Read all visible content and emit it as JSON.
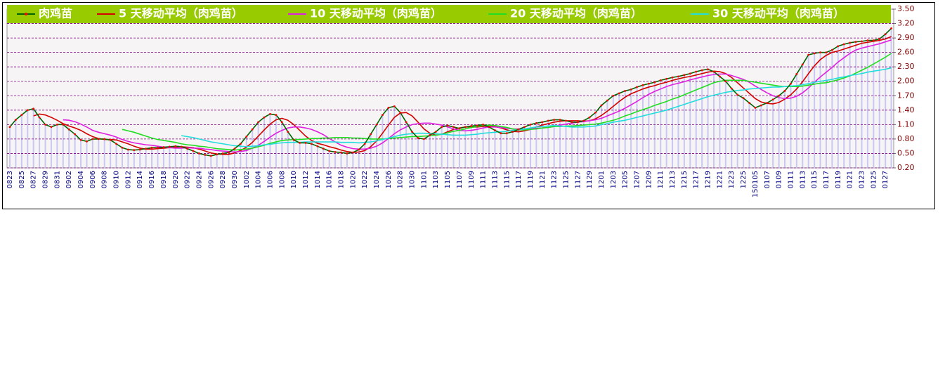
{
  "chart_data": {
    "type": "line",
    "categories": [
      "0823",
      null,
      "0825",
      null,
      "0827",
      null,
      "0829",
      null,
      "0831",
      null,
      "0902",
      null,
      "0904",
      null,
      "0906",
      null,
      "0908",
      null,
      "0910",
      null,
      "0912",
      null,
      "0914",
      null,
      "0916",
      null,
      "0918",
      null,
      "0920",
      null,
      "0922",
      null,
      "0924",
      null,
      "0926",
      null,
      "0928",
      null,
      "0930",
      null,
      "1002",
      null,
      "1004",
      null,
      "1006",
      null,
      "1008",
      null,
      "1010",
      null,
      "1012",
      null,
      "1014",
      null,
      "1016",
      null,
      "1018",
      null,
      "1020",
      null,
      "1022",
      null,
      "1024",
      null,
      "1026",
      null,
      "1028",
      null,
      "1030",
      null,
      "1101",
      null,
      "1103",
      null,
      "1105",
      null,
      "1107",
      null,
      "1109",
      null,
      "1111",
      null,
      "1113",
      null,
      "1115",
      null,
      "1117",
      null,
      "1119",
      null,
      "1121",
      null,
      "1123",
      null,
      "1125",
      null,
      "1127",
      null,
      "1129",
      null,
      "1201",
      null,
      "1203",
      null,
      "1205",
      null,
      "1207",
      null,
      "1209",
      null,
      "1211",
      null,
      "1213",
      null,
      "1215",
      null,
      "1217",
      null,
      "1219",
      null,
      "1221",
      null,
      "1223",
      null,
      "1225",
      null,
      "150105",
      null,
      "0107",
      null,
      "0109",
      null,
      "0111",
      null,
      "0113",
      null,
      "0115",
      null,
      "0117",
      null,
      "0119",
      null,
      "0121",
      null,
      "0123",
      null,
      "0125",
      null,
      "0127",
      null
    ],
    "series": [
      {
        "name": "肉鸡苗",
        "color": "#006400",
        "marker_color": "#ff0000",
        "values": [
          1.05,
          1.2,
          1.3,
          1.4,
          1.43,
          1.25,
          1.1,
          1.05,
          1.1,
          1.1,
          1.0,
          0.9,
          0.78,
          0.75,
          0.8,
          0.8,
          0.8,
          0.78,
          0.7,
          0.62,
          0.58,
          0.57,
          0.58,
          0.6,
          0.62,
          0.62,
          0.63,
          0.64,
          0.65,
          0.64,
          0.6,
          0.55,
          0.5,
          0.47,
          0.45,
          0.48,
          0.5,
          0.52,
          0.6,
          0.7,
          0.85,
          1.0,
          1.15,
          1.25,
          1.32,
          1.3,
          1.15,
          0.95,
          0.78,
          0.72,
          0.72,
          0.7,
          0.65,
          0.6,
          0.55,
          0.53,
          0.52,
          0.5,
          0.52,
          0.58,
          0.7,
          0.9,
          1.1,
          1.3,
          1.45,
          1.48,
          1.35,
          1.15,
          0.95,
          0.82,
          0.8,
          0.88,
          0.95,
          1.05,
          1.08,
          1.05,
          1.02,
          1.05,
          1.07,
          1.08,
          1.1,
          1.05,
          0.98,
          0.92,
          0.92,
          0.95,
          1.0,
          1.05,
          1.1,
          1.13,
          1.15,
          1.18,
          1.2,
          1.2,
          1.18,
          1.15,
          1.15,
          1.18,
          1.25,
          1.35,
          1.5,
          1.6,
          1.7,
          1.75,
          1.8,
          1.83,
          1.88,
          1.92,
          1.95,
          1.98,
          2.02,
          2.05,
          2.08,
          2.1,
          2.13,
          2.16,
          2.2,
          2.23,
          2.25,
          2.2,
          2.1,
          2.0,
          1.85,
          1.72,
          1.65,
          1.55,
          1.45,
          1.5,
          1.55,
          1.62,
          1.7,
          1.8,
          1.95,
          2.15,
          2.35,
          2.55,
          2.58,
          2.6,
          2.6,
          2.65,
          2.73,
          2.77,
          2.8,
          2.82,
          2.83,
          2.85,
          2.85,
          2.88,
          2.98,
          3.1
        ]
      },
      {
        "name": "5 天移动平均（肉鸡苗）",
        "color": "#d40000",
        "values": [
          null,
          null,
          null,
          null,
          1.28,
          1.32,
          1.3,
          1.25,
          1.19,
          1.12,
          1.07,
          1.03,
          0.98,
          0.91,
          0.85,
          0.81,
          0.79,
          0.79,
          0.78,
          0.74,
          0.7,
          0.65,
          0.61,
          0.59,
          0.59,
          0.6,
          0.61,
          0.62,
          0.63,
          0.64,
          0.63,
          0.62,
          0.59,
          0.55,
          0.51,
          0.49,
          0.48,
          0.48,
          0.51,
          0.56,
          0.63,
          0.73,
          0.86,
          0.99,
          1.11,
          1.2,
          1.23,
          1.19,
          1.1,
          0.98,
          0.86,
          0.77,
          0.71,
          0.68,
          0.64,
          0.61,
          0.57,
          0.54,
          0.52,
          0.53,
          0.56,
          0.64,
          0.76,
          0.92,
          1.09,
          1.25,
          1.34,
          1.35,
          1.28,
          1.15,
          1.01,
          0.92,
          0.88,
          0.9,
          0.95,
          1.0,
          1.03,
          1.05,
          1.05,
          1.05,
          1.06,
          1.07,
          1.06,
          1.03,
          0.99,
          0.96,
          0.95,
          0.97,
          1.0,
          1.05,
          1.09,
          1.12,
          1.15,
          1.17,
          1.18,
          1.18,
          1.18,
          1.17,
          1.18,
          1.22,
          1.29,
          1.38,
          1.48,
          1.58,
          1.67,
          1.74,
          1.79,
          1.84,
          1.88,
          1.91,
          1.95,
          1.98,
          2.02,
          2.05,
          2.08,
          2.1,
          2.13,
          2.16,
          2.19,
          2.21,
          2.2,
          2.16,
          2.08,
          1.97,
          1.86,
          1.75,
          1.64,
          1.57,
          1.54,
          1.53,
          1.56,
          1.63,
          1.72,
          1.84,
          1.99,
          2.16,
          2.32,
          2.45,
          2.54,
          2.6,
          2.63,
          2.67,
          2.71,
          2.75,
          2.79,
          2.81,
          2.83,
          2.85,
          2.88,
          2.93
        ]
      },
      {
        "name": "10 天移动平均（肉鸡苗）",
        "color": "#e020e0",
        "values": [
          null,
          null,
          null,
          null,
          null,
          null,
          null,
          null,
          null,
          1.2,
          1.19,
          1.16,
          1.11,
          1.05,
          0.98,
          0.94,
          0.91,
          0.88,
          0.84,
          0.79,
          0.75,
          0.72,
          0.7,
          0.68,
          0.67,
          0.65,
          0.63,
          0.62,
          0.61,
          0.61,
          0.62,
          0.61,
          0.61,
          0.59,
          0.58,
          0.56,
          0.55,
          0.54,
          0.53,
          0.54,
          0.56,
          0.61,
          0.67,
          0.75,
          0.84,
          0.92,
          0.98,
          1.03,
          1.05,
          1.05,
          1.03,
          1.0,
          0.95,
          0.89,
          0.81,
          0.74,
          0.67,
          0.63,
          0.6,
          0.59,
          0.59,
          0.61,
          0.65,
          0.72,
          0.81,
          0.91,
          0.99,
          1.05,
          1.1,
          1.12,
          1.13,
          1.13,
          1.11,
          1.09,
          1.05,
          1.01,
          0.98,
          0.97,
          0.98,
          1.0,
          1.03,
          1.05,
          1.05,
          1.04,
          1.02,
          1.01,
          1.01,
          1.01,
          1.02,
          1.02,
          1.03,
          1.04,
          1.06,
          1.09,
          1.11,
          1.13,
          1.15,
          1.16,
          1.18,
          1.2,
          1.23,
          1.28,
          1.33,
          1.38,
          1.44,
          1.51,
          1.58,
          1.66,
          1.73,
          1.79,
          1.84,
          1.89,
          1.93,
          1.96,
          1.99,
          2.03,
          2.06,
          2.09,
          2.12,
          2.14,
          2.15,
          2.15,
          2.12,
          2.08,
          2.04,
          1.98,
          1.9,
          1.83,
          1.76,
          1.7,
          1.66,
          1.64,
          1.65,
          1.69,
          1.76,
          1.86,
          1.98,
          2.09,
          2.19,
          2.29,
          2.4,
          2.49,
          2.58,
          2.65,
          2.69,
          2.72,
          2.75,
          2.78,
          2.82,
          2.86
        ]
      },
      {
        "name": "20 天移动平均（肉鸡苗）",
        "color": "#22dd22",
        "values": [
          null,
          null,
          null,
          null,
          null,
          null,
          null,
          null,
          null,
          null,
          null,
          null,
          null,
          null,
          null,
          null,
          null,
          null,
          null,
          1.0,
          0.97,
          0.94,
          0.9,
          0.86,
          0.82,
          0.79,
          0.77,
          0.75,
          0.73,
          0.7,
          0.68,
          0.67,
          0.65,
          0.64,
          0.62,
          0.6,
          0.59,
          0.58,
          0.57,
          0.58,
          0.59,
          0.61,
          0.64,
          0.67,
          0.71,
          0.74,
          0.77,
          0.78,
          0.79,
          0.79,
          0.8,
          0.81,
          0.81,
          0.82,
          0.82,
          0.83,
          0.83,
          0.83,
          0.82,
          0.82,
          0.81,
          0.8,
          0.8,
          0.8,
          0.81,
          0.82,
          0.83,
          0.84,
          0.85,
          0.85,
          0.86,
          0.87,
          0.88,
          0.9,
          0.93,
          0.96,
          0.98,
          1.01,
          1.04,
          1.06,
          1.08,
          1.09,
          1.08,
          1.06,
          1.04,
          1.01,
          0.99,
          0.99,
          1.0,
          1.01,
          1.03,
          1.04,
          1.06,
          1.06,
          1.07,
          1.07,
          1.08,
          1.09,
          1.1,
          1.11,
          1.13,
          1.16,
          1.19,
          1.23,
          1.28,
          1.32,
          1.37,
          1.41,
          1.45,
          1.5,
          1.54,
          1.58,
          1.63,
          1.67,
          1.72,
          1.77,
          1.82,
          1.87,
          1.92,
          1.97,
          2.0,
          2.02,
          2.02,
          2.02,
          2.02,
          2.0,
          1.98,
          1.96,
          1.94,
          1.92,
          1.9,
          1.89,
          1.89,
          1.89,
          1.9,
          1.92,
          1.94,
          1.96,
          1.97,
          2.0,
          2.03,
          2.07,
          2.11,
          2.17,
          2.23,
          2.29,
          2.36,
          2.43,
          2.5,
          2.58
        ]
      },
      {
        "name": "30 天移动平均（肉鸡苗）",
        "color": "#22dddd",
        "values": [
          null,
          null,
          null,
          null,
          null,
          null,
          null,
          null,
          null,
          null,
          null,
          null,
          null,
          null,
          null,
          null,
          null,
          null,
          null,
          null,
          null,
          null,
          null,
          null,
          null,
          null,
          null,
          null,
          null,
          0.87,
          0.85,
          0.83,
          0.8,
          0.77,
          0.74,
          0.72,
          0.7,
          0.68,
          0.66,
          0.65,
          0.64,
          0.65,
          0.66,
          0.68,
          0.69,
          0.71,
          0.72,
          0.73,
          0.73,
          0.73,
          0.74,
          0.74,
          0.74,
          0.74,
          0.74,
          0.74,
          0.73,
          0.73,
          0.73,
          0.72,
          0.73,
          0.74,
          0.76,
          0.79,
          0.82,
          0.85,
          0.88,
          0.9,
          0.91,
          0.92,
          0.92,
          0.91,
          0.91,
          0.9,
          0.89,
          0.88,
          0.88,
          0.88,
          0.89,
          0.9,
          0.92,
          0.93,
          0.94,
          0.95,
          0.96,
          0.98,
          0.99,
          1.01,
          1.03,
          1.05,
          1.06,
          1.07,
          1.08,
          1.07,
          1.06,
          1.05,
          1.05,
          1.05,
          1.06,
          1.07,
          1.1,
          1.12,
          1.15,
          1.17,
          1.19,
          1.22,
          1.25,
          1.28,
          1.31,
          1.34,
          1.37,
          1.4,
          1.44,
          1.48,
          1.52,
          1.56,
          1.6,
          1.64,
          1.68,
          1.71,
          1.74,
          1.77,
          1.79,
          1.81,
          1.82,
          1.84,
          1.85,
          1.86,
          1.87,
          1.88,
          1.88,
          1.89,
          1.9,
          1.91,
          1.93,
          1.95,
          1.98,
          2.0,
          2.02,
          2.04,
          2.07,
          2.09,
          2.12,
          2.14,
          2.16,
          2.19,
          2.21,
          2.23,
          2.25,
          2.28
        ]
      }
    ],
    "ylim": [
      0.2,
      3.5
    ],
    "yticks": [
      {
        "value": 3.5,
        "label": "3.50"
      },
      {
        "value": 3.2,
        "label": "3.20"
      },
      {
        "value": 2.9,
        "label": "2.90"
      },
      {
        "value": 2.6,
        "label": "2.60"
      },
      {
        "value": 2.3,
        "label": "2.30"
      },
      {
        "value": 2.0,
        "label": "2.00"
      },
      {
        "value": 1.7,
        "label": "1.70"
      },
      {
        "value": 1.4,
        "label": "1.40"
      },
      {
        "value": 1.1,
        "label": "1.10"
      },
      {
        "value": 0.8,
        "label": "0.80"
      },
      {
        "value": 0.5,
        "label": "0.50"
      },
      {
        "value": 0.2,
        "label": "0.20"
      }
    ],
    "grid": true
  }
}
